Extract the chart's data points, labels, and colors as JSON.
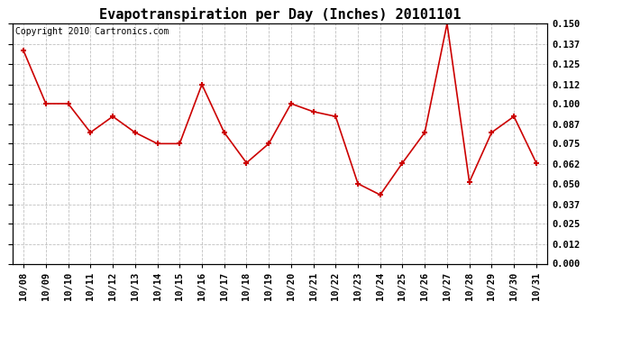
{
  "title": "Evapotranspiration per Day (Inches) 20101101",
  "copyright": "Copyright 2010 Cartronics.com",
  "categories": [
    "10/08",
    "10/09",
    "10/10",
    "10/11",
    "10/12",
    "10/13",
    "10/14",
    "10/15",
    "10/16",
    "10/17",
    "10/18",
    "10/19",
    "10/20",
    "10/21",
    "10/22",
    "10/23",
    "10/24",
    "10/25",
    "10/26",
    "10/27",
    "10/28",
    "10/29",
    "10/30",
    "10/31"
  ],
  "values": [
    0.133,
    0.1,
    0.1,
    0.082,
    0.092,
    0.082,
    0.075,
    0.075,
    0.112,
    0.082,
    0.063,
    0.075,
    0.1,
    0.095,
    0.092,
    0.05,
    0.043,
    0.063,
    0.082,
    0.15,
    0.051,
    0.082,
    0.092,
    0.063
  ],
  "line_color": "#cc0000",
  "marker_color": "#cc0000",
  "bg_color": "#ffffff",
  "plot_bg_color": "#ffffff",
  "grid_color": "#c0c0c0",
  "ylim": [
    0.0,
    0.15
  ],
  "yticks": [
    0.0,
    0.012,
    0.025,
    0.037,
    0.05,
    0.062,
    0.075,
    0.087,
    0.1,
    0.112,
    0.125,
    0.137,
    0.15
  ],
  "ytick_labels": [
    "0.000",
    "0.012",
    "0.025",
    "0.037",
    "0.050",
    "0.062",
    "0.075",
    "0.087",
    "0.100",
    "0.112",
    "0.125",
    "0.137",
    "0.150"
  ],
  "title_fontsize": 11,
  "copyright_fontsize": 7,
  "tick_fontsize": 7.5
}
